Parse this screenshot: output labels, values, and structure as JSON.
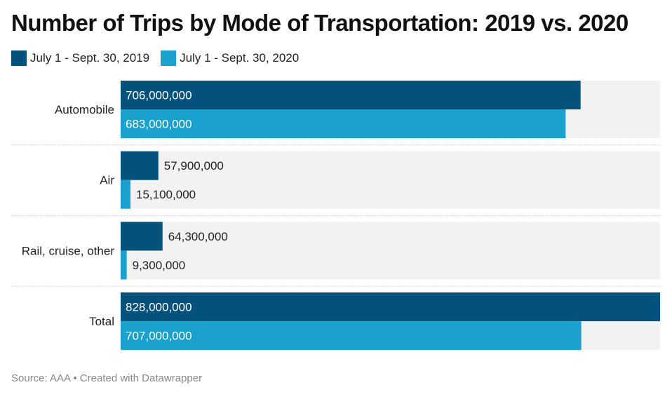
{
  "chart_data": {
    "type": "bar",
    "orientation": "horizontal",
    "title": "Number of Trips by Mode of Transportation: 2019 vs. 2020",
    "categories": [
      "Automobile",
      "Air",
      "Rail, cruise, other",
      "Total"
    ],
    "series": [
      {
        "name": "July 1 - Sept. 30, 2019",
        "color": "#04517b",
        "values": [
          706000000,
          57900000,
          64300000,
          828000000
        ],
        "labels": [
          "706,000,000",
          "57,900,000",
          "64,300,000",
          "828,000,000"
        ]
      },
      {
        "name": "July 1 - Sept. 30, 2020",
        "color": "#1aa1cd",
        "values": [
          683000000,
          15100000,
          9300000,
          707000000
        ],
        "labels": [
          "683,000,000",
          "15,100,000",
          "9,300,000",
          "707,000,000"
        ]
      }
    ],
    "xlim": [
      0,
      828000000
    ],
    "legend": "top-left",
    "background_color": "#f2f2f2"
  },
  "source": "Source: AAA • Created with Datawrapper"
}
